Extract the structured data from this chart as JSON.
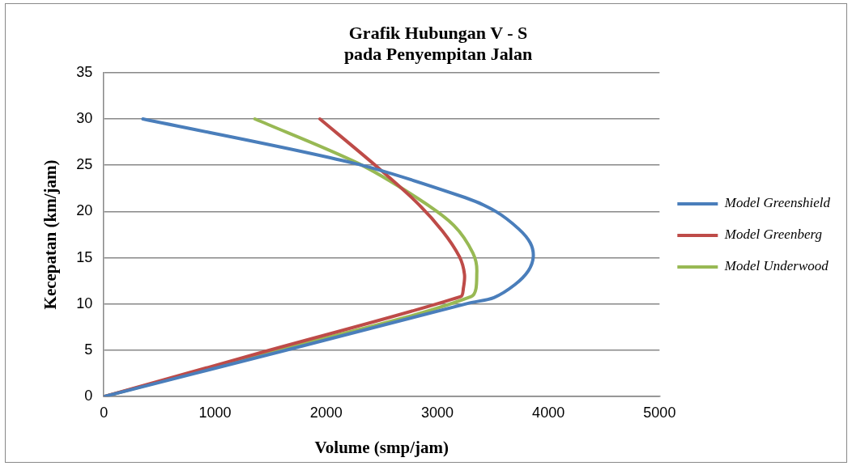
{
  "chart_data": {
    "type": "line",
    "title": "Grafik Hubungan V - S\npada Penyempitan Jalan",
    "xlabel": "Volume (smp/jam)",
    "ylabel": "Kecepatan (km/jam)",
    "xlim": [
      0,
      5000
    ],
    "xticks": [
      0,
      1000,
      2000,
      3000,
      4000,
      5000
    ],
    "ylim": [
      0,
      35
    ],
    "yticks": [
      0,
      5,
      10,
      15,
      20,
      25,
      30,
      35
    ],
    "grid": "y",
    "legend": "right",
    "marker": "none",
    "line_style": "solid",
    "series": [
      {
        "name": "Model Greenshield",
        "color": "#4a7ebb",
        "x": [
          351,
          2254,
          3252,
          3527,
          3734,
          3837,
          3864,
          3820,
          3699,
          3510,
          3286,
          1635,
          0
        ],
        "values": [
          30,
          25.2,
          21.5,
          20,
          18.1,
          16.6,
          15.1,
          13.6,
          12.1,
          10.7,
          10.1,
          5,
          0
        ]
      },
      {
        "name": "Model Greenberg",
        "color": "#be4b48",
        "x": [
          1944,
          2461,
          2805,
          3046,
          3200,
          3245,
          3235,
          3211,
          1428,
          0
        ],
        "values": [
          30,
          24.8,
          21.1,
          17.9,
          15.1,
          13.2,
          11.7,
          10.8,
          4.8,
          0
        ]
      },
      {
        "name": "Model Underwood",
        "color": "#98b954",
        "x": [
          1359,
          2288,
          2839,
          3149,
          3321,
          3356,
          3304,
          1428,
          0
        ],
        "values": [
          30,
          25.2,
          21.3,
          18.5,
          15.5,
          13.4,
          10.8,
          4.6,
          0
        ]
      }
    ]
  }
}
